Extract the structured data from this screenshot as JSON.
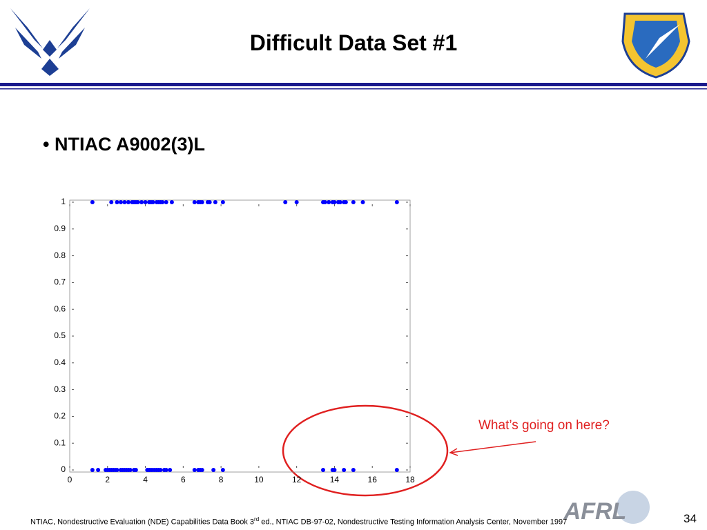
{
  "slide": {
    "title": "Difficult Data Set #1",
    "bullet": "NTIAC A9002(3)L",
    "annotation": "What’s going on here?",
    "footnote": {
      "before": "NTIAC, Nondestructive Evaluation (NDE) Capabilities Data Book 3",
      "sup": "rd",
      "after": " ed., NTIAC DB-97-02, Nondestructive Testing Information Analysis Center, November 1997"
    },
    "logo_text": "AFRL",
    "page_number": "34"
  },
  "chart_data": {
    "type": "scatter",
    "x": [
      1.2,
      2.2,
      2.5,
      2.7,
      2.9,
      3.1,
      3.3,
      3.4,
      3.5,
      3.6,
      3.8,
      4.0,
      4.2,
      4.3,
      4.4,
      4.6,
      4.7,
      4.8,
      4.9,
      5.1,
      5.4,
      6.6,
      6.8,
      6.9,
      7.0,
      7.3,
      7.4,
      7.7,
      8.1,
      11.4,
      12.0,
      13.4,
      13.5,
      13.7,
      13.9,
      14.0,
      14.2,
      14.3,
      14.5,
      14.6,
      15.0,
      15.5,
      17.3,
      1.2,
      1.5,
      1.9,
      2.0,
      2.1,
      2.2,
      2.3,
      2.4,
      2.5,
      2.7,
      2.8,
      2.9,
      3.0,
      3.1,
      3.2,
      3.4,
      3.5,
      4.1,
      4.2,
      4.3,
      4.4,
      4.5,
      4.6,
      4.7,
      4.8,
      5.0,
      5.1,
      5.3,
      6.6,
      6.8,
      6.9,
      7.0,
      7.6,
      8.1,
      13.4,
      13.9,
      14.0,
      14.5,
      15.0,
      17.3
    ],
    "series": [
      {
        "color": "#0000ff",
        "values": [
          1,
          1,
          1,
          1,
          1,
          1,
          1,
          1,
          1,
          1,
          1,
          1,
          1,
          1,
          1,
          1,
          1,
          1,
          1,
          1,
          1,
          1,
          1,
          1,
          1,
          1,
          1,
          1,
          1,
          1,
          1,
          1,
          1,
          1,
          1,
          1,
          1,
          1,
          1,
          1,
          1,
          1,
          1,
          0,
          0,
          0,
          0,
          0,
          0,
          0,
          0,
          0,
          0,
          0,
          0,
          0,
          0,
          0,
          0,
          0,
          0,
          0,
          0,
          0,
          0,
          0,
          0,
          0,
          0,
          0,
          0,
          0,
          0,
          0,
          0,
          0,
          0,
          0,
          0,
          0,
          0,
          0,
          0
        ]
      }
    ],
    "xlim": [
      0,
      18
    ],
    "xticks": [
      0,
      2,
      4,
      6,
      8,
      10,
      12,
      14,
      16,
      18
    ],
    "ylim": [
      0,
      1
    ],
    "yticks": [
      0,
      0.1,
      0.2,
      0.3,
      0.4,
      0.5,
      0.6,
      0.7,
      0.8,
      0.9,
      1
    ]
  }
}
